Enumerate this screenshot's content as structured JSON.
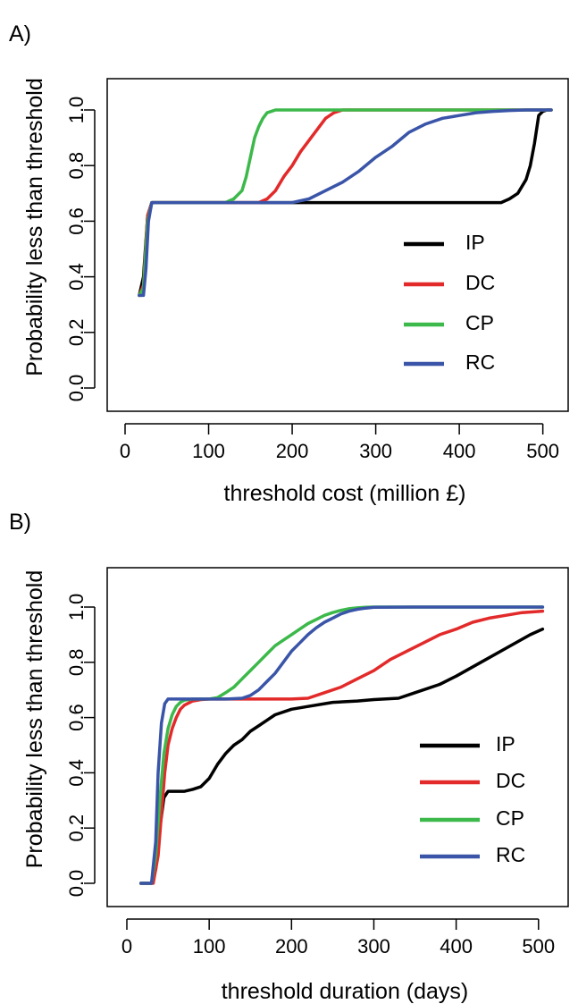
{
  "chart_data": [
    {
      "panel": "A)",
      "type": "line",
      "xlabel": "threshold cost (million £)",
      "ylabel": "Probability less than threshold",
      "xlim": [
        0,
        510
      ],
      "ylim": [
        0,
        1
      ],
      "xticks": [
        "0",
        "100",
        "200",
        "300",
        "400",
        "500"
      ],
      "yticks": [
        "0.0",
        "0.2",
        "0.4",
        "0.6",
        "0.8",
        "1.0"
      ],
      "legend_position": "bottom-right",
      "grid": false,
      "series": [
        {
          "name": "IP",
          "color": "#000000",
          "x": [
            17,
            22,
            27,
            32,
            100,
            200,
            300,
            400,
            450,
            460,
            470,
            480,
            485,
            490,
            495,
            500,
            505,
            510
          ],
          "y": [
            0.333,
            0.4,
            0.62,
            0.667,
            0.667,
            0.667,
            0.667,
            0.667,
            0.667,
            0.68,
            0.7,
            0.75,
            0.8,
            0.88,
            0.98,
            0.995,
            1.0,
            1.0
          ]
        },
        {
          "name": "DC",
          "color": "#e32a2a",
          "x": [
            17,
            22,
            27,
            32,
            100,
            160,
            170,
            180,
            190,
            200,
            210,
            220,
            230,
            240,
            250,
            260,
            300,
            400,
            510
          ],
          "y": [
            0.333,
            0.37,
            0.62,
            0.667,
            0.667,
            0.667,
            0.68,
            0.71,
            0.76,
            0.8,
            0.85,
            0.89,
            0.93,
            0.97,
            0.99,
            1.0,
            1.0,
            1.0,
            1.0
          ]
        },
        {
          "name": "CP",
          "color": "#3cb94a",
          "x": [
            17,
            22,
            27,
            32,
            100,
            120,
            130,
            140,
            145,
            150,
            155,
            160,
            165,
            170,
            175,
            180,
            185,
            190,
            200,
            300,
            400,
            510
          ],
          "y": [
            0.333,
            0.36,
            0.6,
            0.667,
            0.667,
            0.667,
            0.68,
            0.71,
            0.76,
            0.83,
            0.9,
            0.94,
            0.97,
            0.99,
            0.995,
            1.0,
            1.0,
            1.0,
            1.0,
            1.0,
            1.0,
            1.0
          ]
        },
        {
          "name": "RC",
          "color": "#3a55a8",
          "x": [
            17,
            22,
            25,
            28,
            32,
            100,
            180,
            200,
            220,
            240,
            260,
            280,
            300,
            320,
            340,
            360,
            380,
            400,
            420,
            440,
            460,
            480,
            500,
            510
          ],
          "y": [
            0.333,
            0.333,
            0.43,
            0.6,
            0.667,
            0.667,
            0.667,
            0.667,
            0.68,
            0.71,
            0.74,
            0.78,
            0.83,
            0.87,
            0.92,
            0.95,
            0.97,
            0.98,
            0.99,
            0.995,
            0.998,
            1.0,
            1.0,
            1.0
          ]
        }
      ]
    },
    {
      "panel": "B)",
      "type": "line",
      "xlabel": "threshold duration (days)",
      "ylabel": "Probability less than threshold",
      "xlim": [
        0,
        510
      ],
      "ylim": [
        0,
        1
      ],
      "xticks": [
        "0",
        "100",
        "200",
        "300",
        "400",
        "500"
      ],
      "yticks": [
        "0.0",
        "0.2",
        "0.4",
        "0.6",
        "0.8",
        "1.0"
      ],
      "legend_position": "bottom-right",
      "grid": false,
      "series": [
        {
          "name": "IP",
          "color": "#000000",
          "x": [
            17,
            30,
            35,
            40,
            45,
            50,
            60,
            70,
            80,
            90,
            100,
            110,
            120,
            130,
            140,
            150,
            160,
            170,
            180,
            200,
            220,
            250,
            280,
            300,
            330,
            350,
            380,
            400,
            430,
            460,
            490,
            505
          ],
          "y": [
            0.0,
            0.0,
            0.05,
            0.2,
            0.31,
            0.333,
            0.333,
            0.333,
            0.34,
            0.35,
            0.38,
            0.43,
            0.47,
            0.5,
            0.52,
            0.55,
            0.57,
            0.59,
            0.61,
            0.63,
            0.64,
            0.655,
            0.66,
            0.665,
            0.67,
            0.69,
            0.72,
            0.75,
            0.8,
            0.85,
            0.9,
            0.92
          ]
        },
        {
          "name": "DC",
          "color": "#e32a2a",
          "x": [
            17,
            32,
            38,
            42,
            46,
            50,
            55,
            60,
            65,
            70,
            80,
            90,
            100,
            150,
            200,
            220,
            240,
            260,
            280,
            300,
            320,
            340,
            360,
            380,
            400,
            420,
            440,
            460,
            480,
            505
          ],
          "y": [
            0.0,
            0.0,
            0.1,
            0.25,
            0.4,
            0.5,
            0.56,
            0.6,
            0.63,
            0.645,
            0.66,
            0.665,
            0.667,
            0.667,
            0.667,
            0.67,
            0.69,
            0.71,
            0.74,
            0.77,
            0.81,
            0.84,
            0.87,
            0.9,
            0.92,
            0.945,
            0.96,
            0.97,
            0.98,
            0.985
          ]
        },
        {
          "name": "CP",
          "color": "#3cb94a",
          "x": [
            17,
            30,
            35,
            40,
            45,
            50,
            55,
            60,
            65,
            70,
            80,
            100,
            110,
            120,
            130,
            140,
            150,
            160,
            170,
            180,
            190,
            200,
            210,
            220,
            230,
            240,
            250,
            260,
            270,
            280,
            290,
            300,
            350,
            400,
            505
          ],
          "y": [
            0.0,
            0.0,
            0.1,
            0.3,
            0.47,
            0.56,
            0.61,
            0.64,
            0.655,
            0.663,
            0.667,
            0.667,
            0.672,
            0.69,
            0.71,
            0.74,
            0.77,
            0.8,
            0.83,
            0.86,
            0.88,
            0.9,
            0.92,
            0.94,
            0.955,
            0.97,
            0.98,
            0.988,
            0.994,
            0.997,
            0.999,
            1.0,
            1.0,
            1.0,
            1.0
          ]
        },
        {
          "name": "RC",
          "color": "#3a55a8",
          "x": [
            17,
            30,
            35,
            38,
            42,
            46,
            50,
            55,
            60,
            80,
            100,
            120,
            140,
            150,
            160,
            170,
            180,
            190,
            200,
            210,
            220,
            230,
            240,
            250,
            260,
            270,
            280,
            290,
            300,
            350,
            400,
            505
          ],
          "y": [
            0.0,
            0.0,
            0.15,
            0.4,
            0.58,
            0.65,
            0.667,
            0.667,
            0.667,
            0.667,
            0.667,
            0.667,
            0.67,
            0.68,
            0.7,
            0.73,
            0.76,
            0.8,
            0.84,
            0.87,
            0.9,
            0.925,
            0.945,
            0.96,
            0.975,
            0.985,
            0.992,
            0.996,
            0.999,
            1.0,
            1.0,
            1.0
          ]
        }
      ]
    }
  ]
}
